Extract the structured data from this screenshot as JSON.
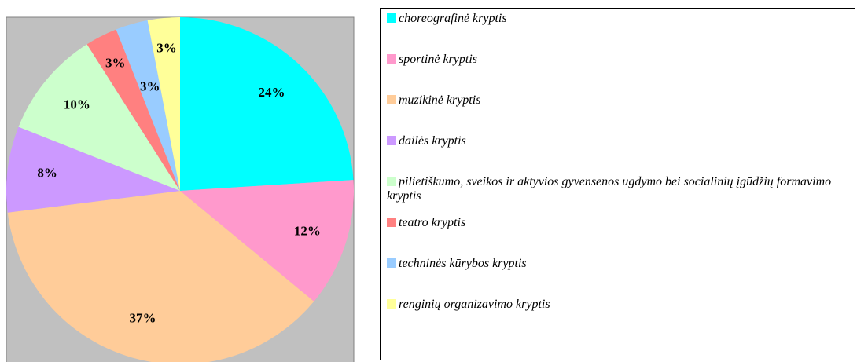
{
  "chart_data": {
    "type": "pie",
    "categories": [
      "choreografinė kryptis",
      "sportinė kryptis",
      "muzikinė kryptis",
      "dailės kryptis",
      "pilietiškumo, sveikos ir aktyvios gyvensenos ugdymo bei  socialinių įgūdžių formavimo kryptis",
      "teatro kryptis",
      "techninės kūrybos kryptis",
      "renginių organizavimo kryptis"
    ],
    "values": [
      24,
      12,
      37,
      8,
      10,
      3,
      3,
      3
    ],
    "value_labels": [
      "24%",
      "12%",
      "37%",
      "8%",
      "10%",
      "3%",
      "3%",
      "3%"
    ],
    "colors": [
      "#00ffff",
      "#ff99cc",
      "#ffcc99",
      "#cc99ff",
      "#ccffcc",
      "#ff8080",
      "#99ccff",
      "#ffff99"
    ]
  }
}
